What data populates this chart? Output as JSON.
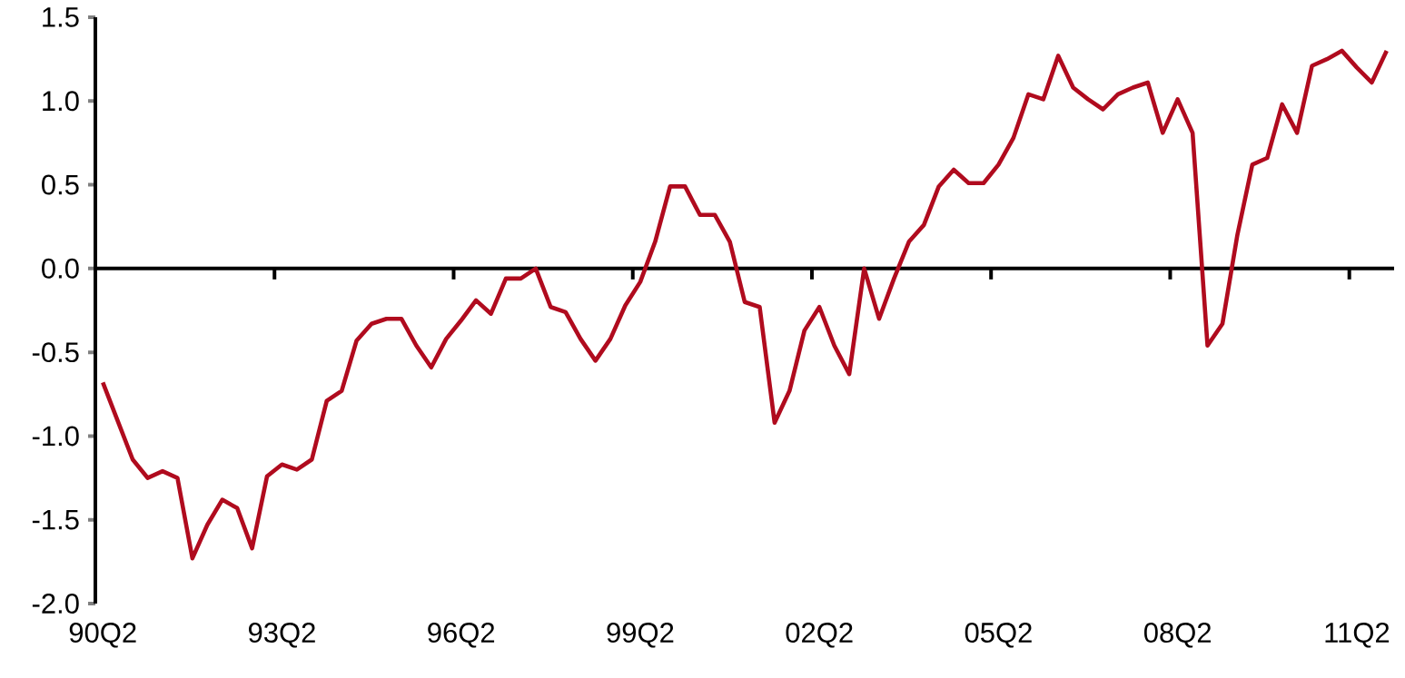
{
  "chart_data": {
    "type": "line",
    "categories": [
      "90Q2",
      null,
      null,
      null,
      null,
      null,
      null,
      null,
      null,
      null,
      null,
      null,
      "93Q2",
      null,
      null,
      null,
      null,
      null,
      null,
      null,
      null,
      null,
      null,
      null,
      "96Q2",
      null,
      null,
      null,
      null,
      null,
      null,
      null,
      null,
      null,
      null,
      null,
      "99Q2",
      null,
      null,
      null,
      null,
      null,
      null,
      null,
      null,
      null,
      null,
      null,
      "02Q2",
      null,
      null,
      null,
      null,
      null,
      null,
      null,
      null,
      null,
      null,
      null,
      "05Q2",
      null,
      null,
      null,
      null,
      null,
      null,
      null,
      null,
      null,
      null,
      null,
      "08Q2",
      null,
      null,
      null,
      null,
      null,
      null,
      null,
      null,
      null,
      null,
      null,
      "11Q2",
      null,
      null
    ],
    "series": [
      {
        "color": "#b00b1e",
        "values": [
          -0.68,
          -0.91,
          -1.14,
          -1.25,
          -1.21,
          -1.25,
          -1.73,
          -1.53,
          -1.38,
          -1.43,
          -1.67,
          -1.24,
          -1.17,
          -1.2,
          -1.14,
          -0.79,
          -0.73,
          -0.43,
          -0.33,
          -0.3,
          -0.3,
          -0.46,
          -0.59,
          -0.42,
          -0.31,
          -0.19,
          -0.27,
          -0.06,
          -0.06,
          0.0,
          -0.23,
          -0.26,
          -0.42,
          -0.55,
          -0.42,
          -0.22,
          -0.08,
          0.16,
          0.49,
          0.49,
          0.32,
          0.32,
          0.16,
          -0.2,
          -0.23,
          -0.92,
          -0.73,
          -0.37,
          -0.23,
          -0.46,
          -0.63,
          0.0,
          -0.3,
          -0.06,
          0.16,
          0.26,
          0.49,
          0.59,
          0.51,
          0.51,
          0.62,
          0.78,
          1.04,
          1.01,
          1.27,
          1.08,
          1.01,
          0.95,
          1.04,
          1.08,
          1.11,
          0.81,
          1.01,
          0.81,
          -0.46,
          -0.33,
          0.2,
          0.62,
          0.66,
          0.98,
          0.81,
          1.21,
          1.25,
          1.3,
          1.2,
          1.11,
          1.3
        ]
      }
    ],
    "ylim": [
      -2,
      1.5
    ],
    "yticks": [
      {
        "value": -2,
        "label": "-2.0"
      },
      {
        "value": -1.5,
        "label": "-1.5"
      },
      {
        "value": -1,
        "label": "-1.0"
      },
      {
        "value": -0.5,
        "label": "-0.5"
      },
      {
        "value": 0,
        "label": "0.0"
      },
      {
        "value": 0.5,
        "label": "0.5"
      },
      {
        "value": 1,
        "label": "1.0"
      },
      {
        "value": 1.5,
        "label": "1.5"
      }
    ],
    "ref_lines": [
      {
        "axis": "y",
        "value": 0
      }
    ],
    "grid": false,
    "legend": false,
    "marker": "none",
    "line_style": "solid"
  }
}
